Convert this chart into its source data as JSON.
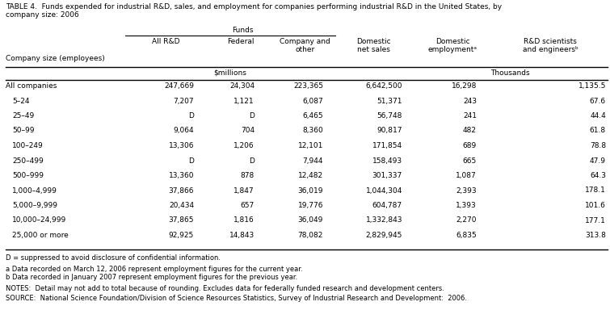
{
  "title_line1": "TABLE 4.  Funds expended for industrial R&D, sales, and employment for companies performing industrial R&D in the United States, by",
  "title_line2": "company size: 2006",
  "rows": [
    [
      "All companies",
      "247,669",
      "24,304",
      "223,365",
      "6,642,500",
      "16,298",
      "1,135.5"
    ],
    [
      "5–24",
      "7,207",
      "1,121",
      "6,087",
      "51,371",
      "243",
      "67.6"
    ],
    [
      "25–49",
      "D",
      "D",
      "6,465",
      "56,748",
      "241",
      "44.4"
    ],
    [
      "50–99",
      "9,064",
      "704",
      "8,360",
      "90,817",
      "482",
      "61.8"
    ],
    [
      "100–249",
      "13,306",
      "1,206",
      "12,101",
      "171,854",
      "689",
      "78.8"
    ],
    [
      "250–499",
      "D",
      "D",
      "7,944",
      "158,493",
      "665",
      "47.9"
    ],
    [
      "500–999",
      "13,360",
      "878",
      "12,482",
      "301,337",
      "1,087",
      "64.3"
    ],
    [
      "1,000–4,999",
      "37,866",
      "1,847",
      "36,019",
      "1,044,304",
      "2,393",
      "178.1"
    ],
    [
      "5,000–9,999",
      "20,434",
      "657",
      "19,776",
      "604,787",
      "1,393",
      "101.6"
    ],
    [
      "10,000–24,999",
      "37,865",
      "1,816",
      "36,049",
      "1,332,843",
      "2,270",
      "177.1"
    ],
    [
      "25,000 or more",
      "92,925",
      "14,843",
      "78,082",
      "2,829,945",
      "6,835",
      "313.8"
    ]
  ],
  "footnote_d": "D = suppressed to avoid disclosure of confidential information.",
  "footnote_a": "a Data recorded on March 12, 2006 represent employment figures for the current year.",
  "footnote_b": "b Data recorded in January 2007 represent employment figures for the previous year.",
  "notes": "NOTES:  Detail may not add to total because of rounding. Excludes data for federally funded research and development centers.",
  "source": "SOURCE:  National Science Foundation/Division of Science Resources Statistics, Survey of Industrial Research and Development:  2006.",
  "col_headers": [
    "Company size (employees)",
    "All R&D",
    "Federal",
    "Company and\nother",
    "Domestic\nnet sales",
    "Domestic\nemploymentᵃ",
    "R&D scientists\nand engineersᵇ"
  ],
  "funds_label": "Funds",
  "millions_label": "$millions",
  "thousands_label": "Thousands"
}
